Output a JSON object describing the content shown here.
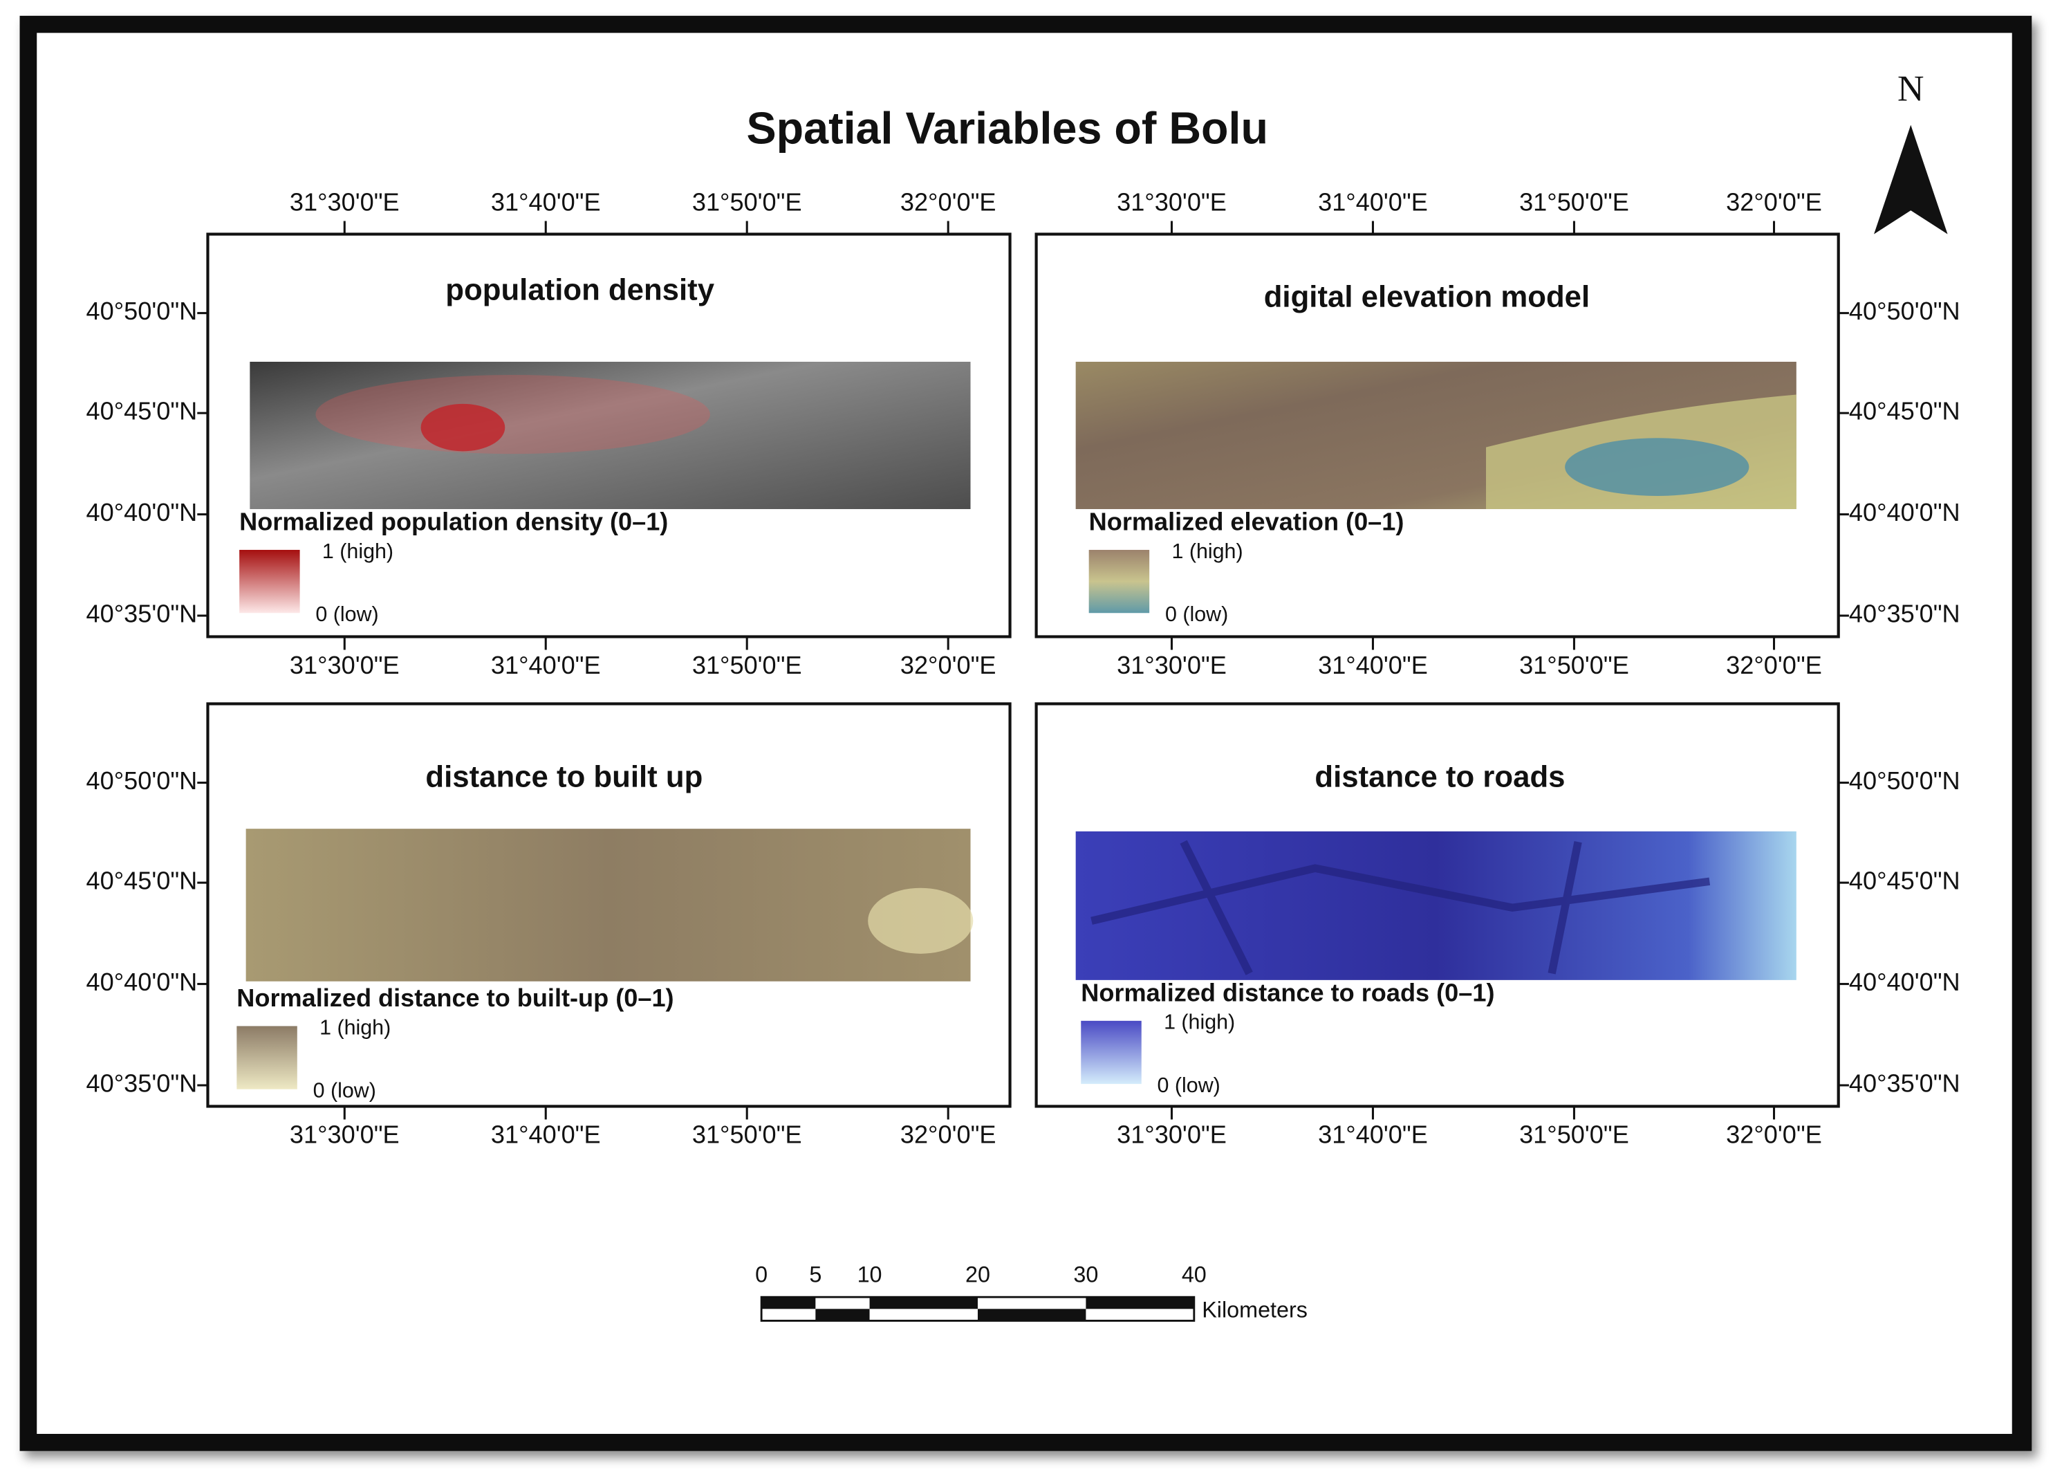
{
  "title": "Spatial Variables of Bolu",
  "north_label": "N",
  "longitude_labels": [
    "31°30'0\"E",
    "31°40'0\"E",
    "31°50'0\"E",
    "32°0'0\"E"
  ],
  "latitude_labels": [
    "40°50'0\"N",
    "40°45'0\"N",
    "40°40'0\"N",
    "40°35'0\"N"
  ],
  "panels": [
    {
      "title": "population density",
      "legend_title": "Normalized population density (0–1)",
      "high_label": "1 (high)",
      "low_label": "0 (low)"
    },
    {
      "title": "digital elevation model",
      "legend_title": "Normalized elevation (0–1)",
      "high_label": "1 (high)",
      "low_label": "0 (low)"
    },
    {
      "title": "distance to built up",
      "legend_title": "Normalized distance to built-up (0–1)",
      "high_label": "1 (high)",
      "low_label": "0 (low)"
    },
    {
      "title": "distance to roads",
      "legend_title": "Normalized distance to roads (0–1)",
      "high_label": "1 (high)",
      "low_label": "0 (low)"
    }
  ],
  "scale_bar": {
    "ticks": [
      0,
      5,
      10,
      20,
      30,
      40
    ],
    "unit": "Kilometers"
  }
}
